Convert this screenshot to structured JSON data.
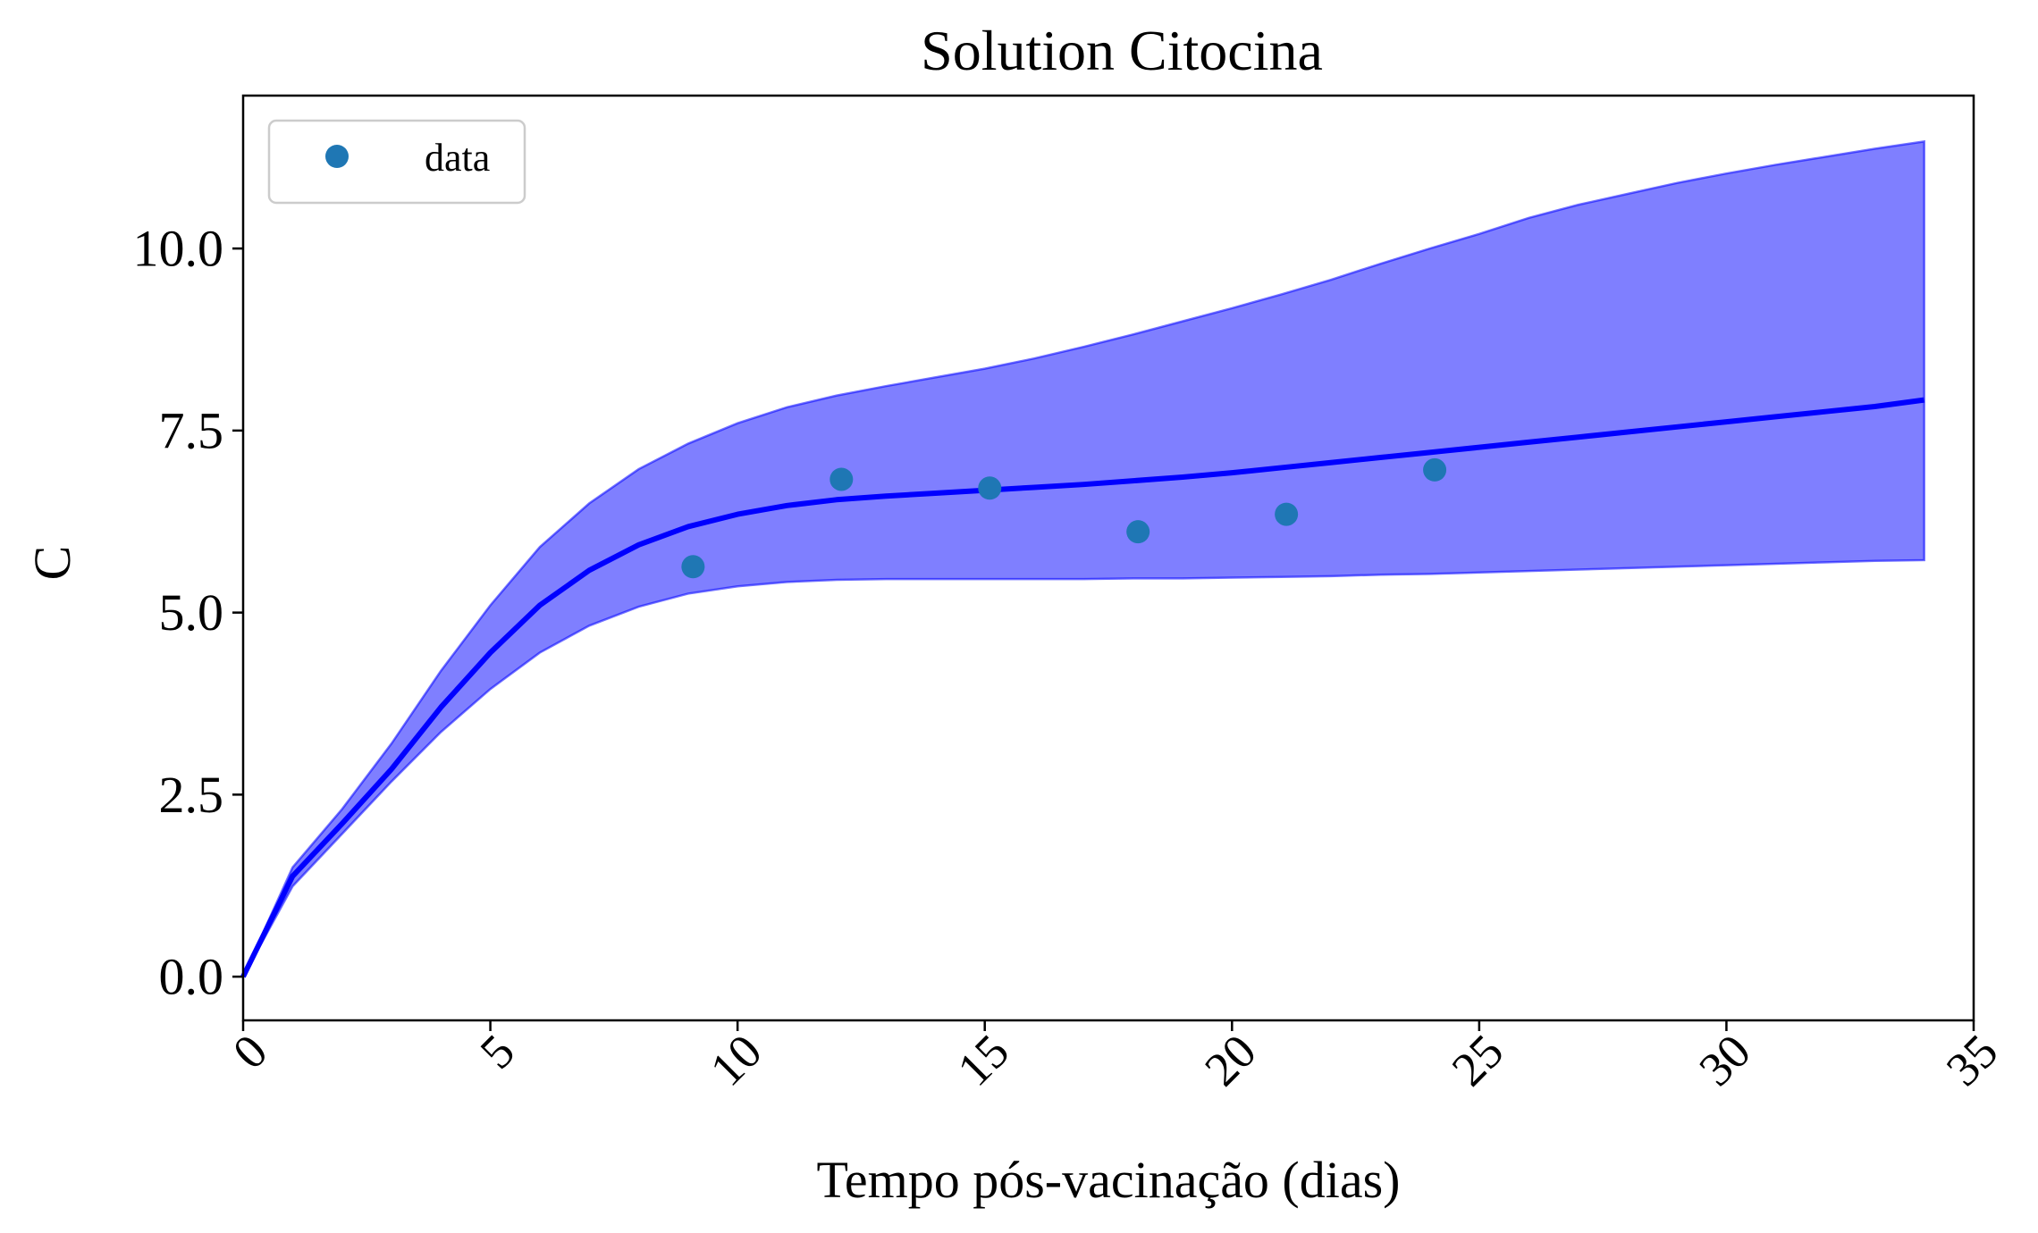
{
  "chart_data": {
    "type": "line",
    "title": "Solution Citocina",
    "xlabel": "Tempo pós-vacinação (dias)",
    "ylabel": "C",
    "xlim": [
      0,
      35
    ],
    "ylim": [
      -0.6,
      12.1
    ],
    "xticks": [
      0,
      5,
      10,
      15,
      20,
      25,
      30,
      35
    ],
    "xtick_labels": [
      "0",
      "5",
      "10",
      "15",
      "20",
      "25",
      "30",
      "35"
    ],
    "yticks": [
      0,
      2.5,
      5,
      7.5,
      10
    ],
    "ytick_labels": [
      "0.0",
      "2.5",
      "5.0",
      "7.5",
      "10.0"
    ],
    "xtick_rotation": 45,
    "grid": false,
    "legend": {
      "position": "top-left",
      "entries": [
        "data"
      ]
    },
    "colors": {
      "band": "#0000ff",
      "line": "#0000ff",
      "points": "#1f77b4"
    },
    "x": [
      0,
      1,
      2,
      3,
      4,
      5,
      6,
      7,
      8,
      9,
      10,
      11,
      12,
      13,
      14,
      15,
      16,
      17,
      18,
      19,
      20,
      21,
      22,
      23,
      24,
      25,
      26,
      27,
      28,
      29,
      30,
      31,
      32,
      33,
      34
    ],
    "mean": [
      0.0,
      1.38,
      2.1,
      2.85,
      3.7,
      4.45,
      5.1,
      5.58,
      5.93,
      6.18,
      6.35,
      6.47,
      6.55,
      6.6,
      6.64,
      6.68,
      6.72,
      6.76,
      6.81,
      6.86,
      6.92,
      6.99,
      7.06,
      7.13,
      7.2,
      7.27,
      7.34,
      7.41,
      7.48,
      7.55,
      7.62,
      7.69,
      7.76,
      7.83,
      7.92
    ],
    "upper": [
      0.0,
      1.5,
      2.3,
      3.2,
      4.2,
      5.1,
      5.9,
      6.5,
      6.97,
      7.32,
      7.6,
      7.82,
      7.98,
      8.11,
      8.23,
      8.35,
      8.49,
      8.65,
      8.82,
      9.0,
      9.18,
      9.37,
      9.57,
      9.79,
      10.0,
      10.2,
      10.42,
      10.6,
      10.75,
      10.9,
      11.03,
      11.15,
      11.26,
      11.37,
      11.47
    ],
    "lower": [
      0.0,
      1.24,
      1.96,
      2.68,
      3.36,
      3.95,
      4.45,
      4.82,
      5.08,
      5.26,
      5.36,
      5.42,
      5.45,
      5.46,
      5.46,
      5.46,
      5.46,
      5.46,
      5.47,
      5.47,
      5.48,
      5.49,
      5.5,
      5.52,
      5.53,
      5.55,
      5.57,
      5.59,
      5.61,
      5.63,
      5.65,
      5.67,
      5.69,
      5.71,
      5.72
    ],
    "data_points": {
      "name": "data",
      "x": [
        9.1,
        12.1,
        15.1,
        18.1,
        21.1,
        24.1
      ],
      "y": [
        5.63,
        6.83,
        6.71,
        6.11,
        6.35,
        6.96
      ]
    }
  }
}
